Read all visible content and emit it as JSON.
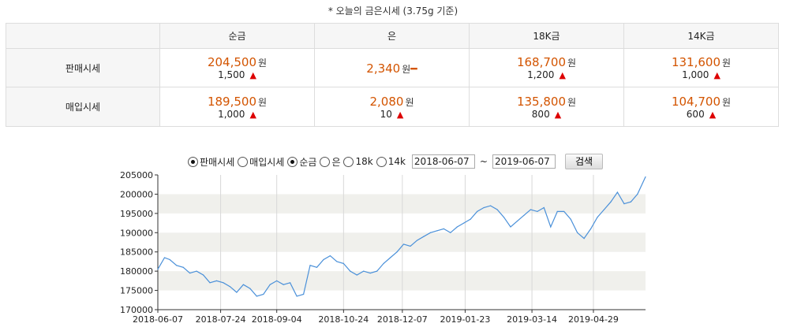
{
  "title": "* 오늘의 금은시세 (3.75g 기준)",
  "table": {
    "columns": [
      "순금",
      "은",
      "18K금",
      "14K금"
    ],
    "rows": [
      {
        "label": "판매시세",
        "cells": [
          {
            "price": "204,500",
            "unit": "원",
            "change": "1,500",
            "trend": "up"
          },
          {
            "price": "2,340",
            "unit": "원",
            "change": "",
            "trend": "flat"
          },
          {
            "price": "168,700",
            "unit": "원",
            "change": "1,200",
            "trend": "up"
          },
          {
            "price": "131,600",
            "unit": "원",
            "change": "1,000",
            "trend": "up"
          }
        ]
      },
      {
        "label": "매입시세",
        "cells": [
          {
            "price": "189,500",
            "unit": "원",
            "change": "1,000",
            "trend": "up"
          },
          {
            "price": "2,080",
            "unit": "원",
            "change": "10",
            "trend": "up"
          },
          {
            "price": "135,800",
            "unit": "원",
            "change": "800",
            "trend": "up"
          },
          {
            "price": "104,700",
            "unit": "원",
            "change": "600",
            "trend": "up"
          }
        ]
      }
    ]
  },
  "controls": {
    "price_type": [
      "판매시세",
      "매입시세"
    ],
    "price_type_selected": "판매시세",
    "metal": [
      "순금",
      "은",
      "18k",
      "14k"
    ],
    "metal_selected": "순금",
    "date_from": "2018-06-07",
    "date_sep": "~",
    "date_to": "2019-06-07",
    "search_label": "검색"
  },
  "colors": {
    "price": "#d35400",
    "up": "#dd0000",
    "line": "#4a90d9",
    "band": "#f0f0ec"
  },
  "chart_data": {
    "type": "line",
    "title": "",
    "xlabel": "",
    "ylabel": "",
    "ylim": [
      170000,
      205000
    ],
    "yticks": [
      170000,
      175000,
      180000,
      185000,
      190000,
      195000,
      200000,
      205000
    ],
    "xticks": [
      "2018-06-07",
      "2018-07-24",
      "2018-09-04",
      "2018-10-24",
      "2018-12-07",
      "2019-01-23",
      "2019-03-14",
      "2019-04-29"
    ],
    "xlim": [
      "2018-06-07",
      "2019-06-07"
    ],
    "series": [
      {
        "name": "",
        "x": [
          "2018-06-07",
          "2018-06-12",
          "2018-06-16",
          "2018-06-21",
          "2018-06-26",
          "2018-07-01",
          "2018-07-06",
          "2018-07-11",
          "2018-07-16",
          "2018-07-21",
          "2018-07-26",
          "2018-07-31",
          "2018-08-05",
          "2018-08-10",
          "2018-08-15",
          "2018-08-20",
          "2018-08-25",
          "2018-08-30",
          "2018-09-04",
          "2018-09-09",
          "2018-09-14",
          "2018-09-19",
          "2018-09-24",
          "2018-09-29",
          "2018-10-04",
          "2018-10-09",
          "2018-10-14",
          "2018-10-19",
          "2018-10-24",
          "2018-10-29",
          "2018-11-03",
          "2018-11-08",
          "2018-11-13",
          "2018-11-18",
          "2018-11-23",
          "2018-11-28",
          "2018-12-03",
          "2018-12-08",
          "2018-12-13",
          "2018-12-18",
          "2018-12-23",
          "2018-12-28",
          "2019-01-02",
          "2019-01-07",
          "2019-01-12",
          "2019-01-17",
          "2019-01-22",
          "2019-01-27",
          "2019-02-01",
          "2019-02-06",
          "2019-02-11",
          "2019-02-16",
          "2019-02-21",
          "2019-02-26",
          "2019-03-03",
          "2019-03-08",
          "2019-03-13",
          "2019-03-18",
          "2019-03-23",
          "2019-03-28",
          "2019-04-02",
          "2019-04-07",
          "2019-04-12",
          "2019-04-17",
          "2019-04-22",
          "2019-04-27",
          "2019-05-02",
          "2019-05-07",
          "2019-05-12",
          "2019-05-17",
          "2019-05-22",
          "2019-05-27",
          "2019-06-01",
          "2019-06-07"
        ],
        "y": [
          180500,
          183500,
          183000,
          181500,
          181000,
          179500,
          180000,
          179000,
          177000,
          177500,
          177000,
          176000,
          174500,
          176500,
          175500,
          173500,
          174000,
          176500,
          177500,
          176500,
          177000,
          173500,
          174000,
          181500,
          181000,
          183000,
          184000,
          182500,
          182000,
          180000,
          179000,
          180000,
          179500,
          180000,
          182000,
          183500,
          185000,
          187000,
          186500,
          188000,
          189000,
          190000,
          190500,
          191000,
          190000,
          191500,
          192500,
          193500,
          195500,
          196500,
          197000,
          196000,
          194000,
          191500,
          193000,
          194500,
          196000,
          195500,
          196500,
          191500,
          195500,
          195500,
          193500,
          190000,
          188500,
          191000,
          194000,
          196000,
          198000,
          200500,
          197500,
          198000,
          200000,
          204500
        ]
      }
    ]
  }
}
